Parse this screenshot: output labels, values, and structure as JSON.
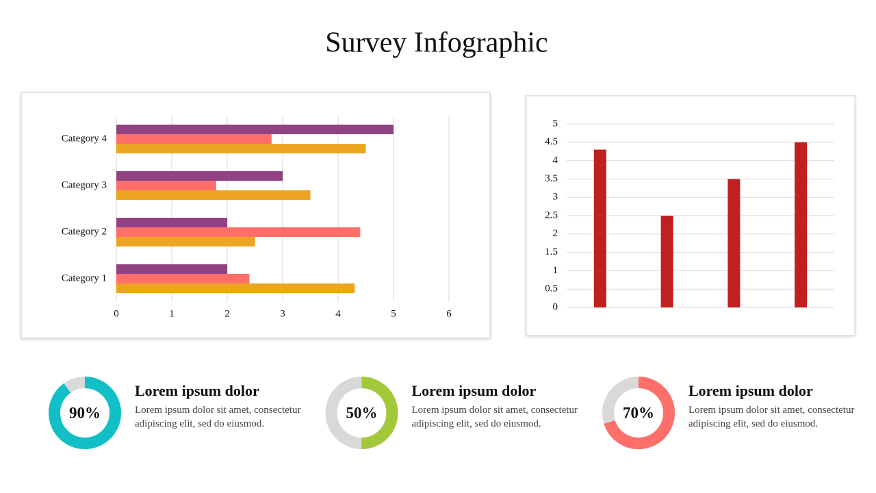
{
  "title": "Survey Infographic",
  "chart_data": [
    {
      "type": "hbar",
      "categories": [
        "Category 1",
        "Category 2",
        "Category 3",
        "Category 4"
      ],
      "series": [
        {
          "color": "#914283",
          "values": [
            2,
            2,
            3,
            5
          ]
        },
        {
          "color": "#fe6f6a",
          "values": [
            2.4,
            4.4,
            1.8,
            2.8
          ]
        },
        {
          "color": "#eca520",
          "values": [
            4.3,
            2.5,
            3.5,
            4.5
          ]
        }
      ],
      "xlim": [
        0,
        6
      ],
      "xticks": [
        0,
        1,
        2,
        3,
        4,
        5,
        6
      ],
      "grid": true
    },
    {
      "type": "bar",
      "categories": [
        null,
        null,
        null,
        null
      ],
      "values": [
        4.3,
        2.5,
        3.5,
        4.5
      ],
      "color": "#c0201f",
      "ylim": [
        0,
        5
      ],
      "yticks": [
        0,
        0.5,
        1,
        1.5,
        2,
        2.5,
        3,
        3.5,
        4,
        4.5,
        5
      ],
      "grid": true
    },
    {
      "type": "donut",
      "values": [
        90
      ],
      "value_labels": [
        "90%"
      ],
      "color": "#13bfc6",
      "track_color": "#d9d9d9",
      "heading": "Lorem ipsum dolor",
      "text": "Lorem ipsum dolor sit amet, consectetur adipiscing elit, sed do eiusmod."
    },
    {
      "type": "donut",
      "values": [
        50
      ],
      "value_labels": [
        "50%"
      ],
      "color": "#a2c93a",
      "track_color": "#d9d9d9",
      "heading": "Lorem ipsum dolor",
      "text": "Lorem ipsum dolor sit amet, consectetur adipiscing elit, sed do eiusmod."
    },
    {
      "type": "donut",
      "values": [
        70
      ],
      "value_labels": [
        "70%"
      ],
      "color": "#fe6f6a",
      "track_color": "#d9d9d9",
      "heading": "Lorem ipsum dolor",
      "text": "Lorem ipsum dolor sit amet, consectetur adipiscing elit, sed do eiusmod."
    }
  ]
}
